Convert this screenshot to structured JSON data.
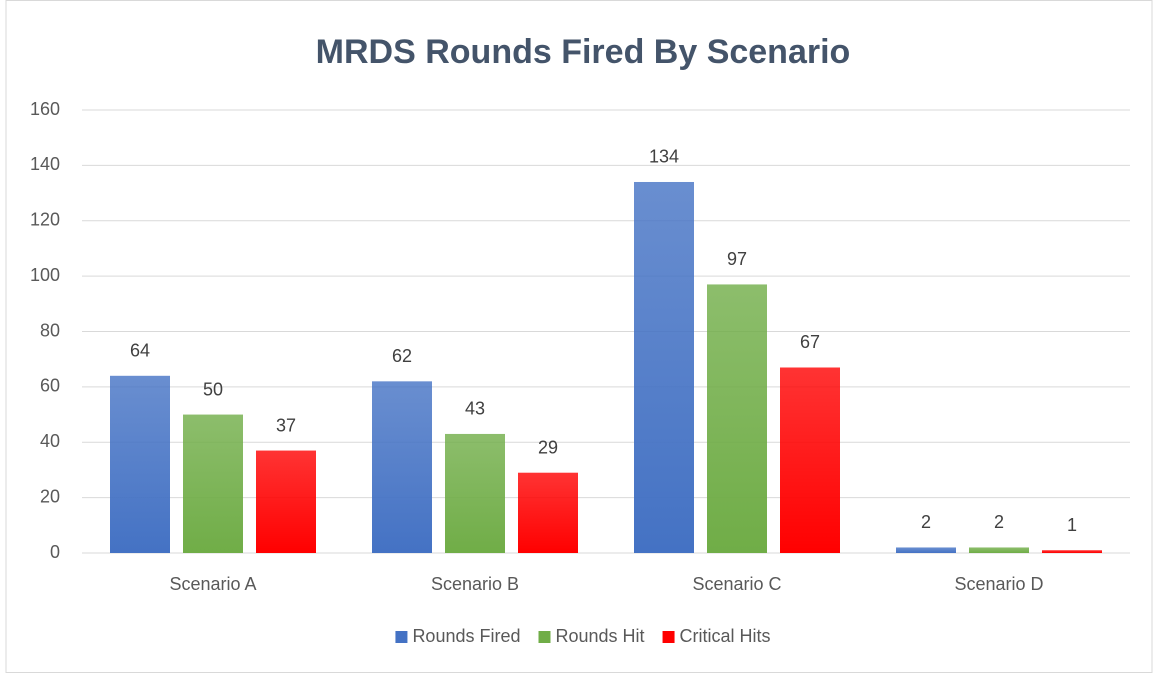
{
  "chart_data": {
    "type": "bar",
    "title": "MRDS Rounds Fired By Scenario",
    "categories": [
      "Scenario A",
      "Scenario B",
      "Scenario C",
      "Scenario D"
    ],
    "series": [
      {
        "name": "Rounds Fired",
        "color": "#4472c4",
        "values": [
          64,
          62,
          134,
          2
        ]
      },
      {
        "name": "Rounds Hit",
        "color": "#70ad47",
        "values": [
          50,
          43,
          97,
          2
        ]
      },
      {
        "name": "Critical Hits",
        "color": "#ff0000",
        "values": [
          37,
          29,
          67,
          1
        ]
      }
    ],
    "ylim": [
      0,
      160
    ],
    "yticks": [
      0,
      20,
      40,
      60,
      80,
      100,
      120,
      140,
      160
    ],
    "grid": true,
    "legend": "bottom"
  }
}
